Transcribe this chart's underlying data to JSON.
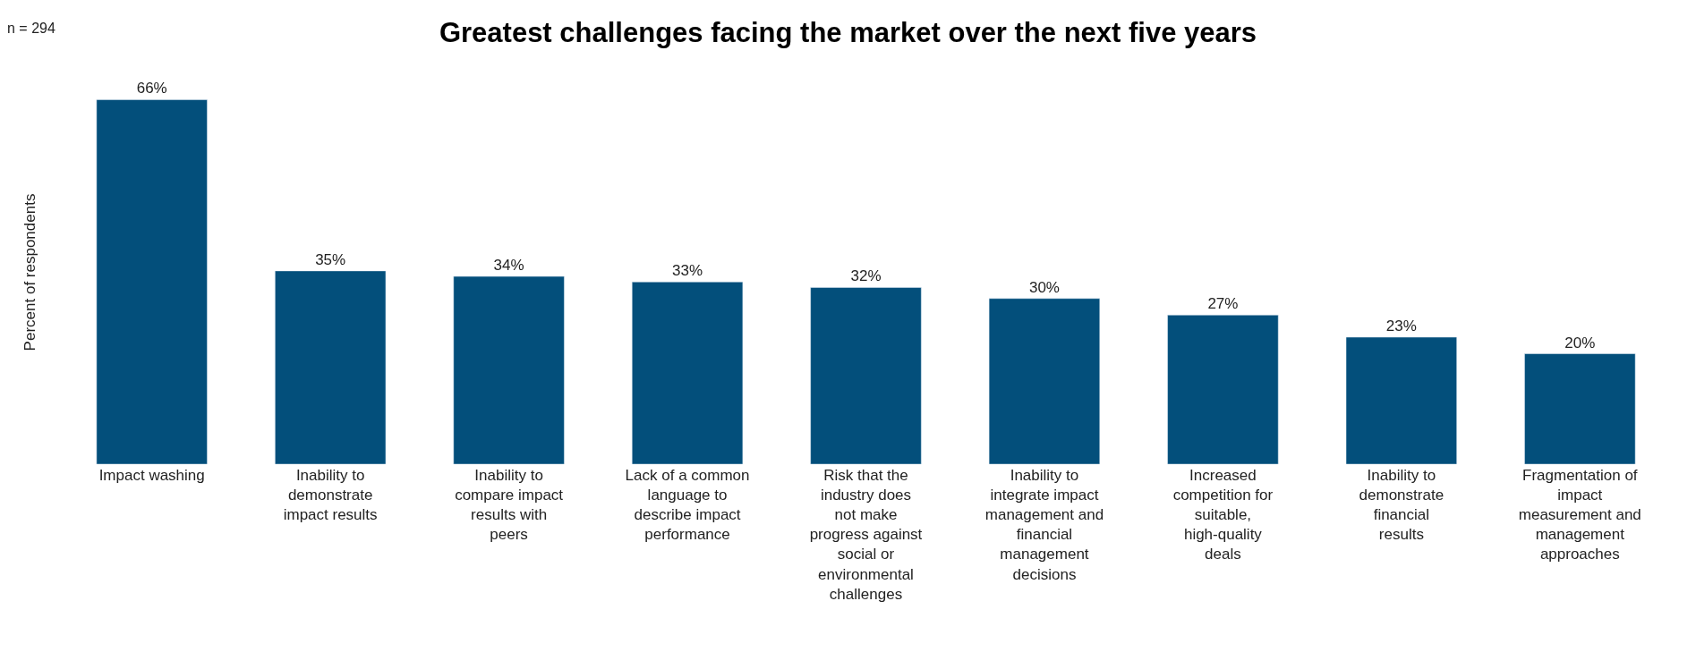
{
  "chart_data": {
    "type": "bar",
    "title": "Greatest challenges facing the market over the next five years",
    "ylabel": "Percent of respondents",
    "annotations": [
      "n = 294"
    ],
    "categories": [
      "Impact washing",
      "Inability to demonstrate impact results",
      "Inability to compare impact results with peers",
      "Lack of a common language to describe impact performance",
      "Risk that the industry does not make progress against social or environmental challenges",
      "Inability to integrate impact management and financial management decisions",
      "Increased competition for suitable, high-quality deals",
      "Inability to demonstrate financial results",
      "Fragmentation of impact measurement and management approaches"
    ],
    "values": [
      66,
      35,
      34,
      33,
      32,
      30,
      27,
      23,
      20
    ],
    "value_labels": [
      "66%",
      "35%",
      "34%",
      "33%",
      "32%",
      "30%",
      "27%",
      "23%",
      "20%"
    ],
    "color": "#034f7b"
  }
}
